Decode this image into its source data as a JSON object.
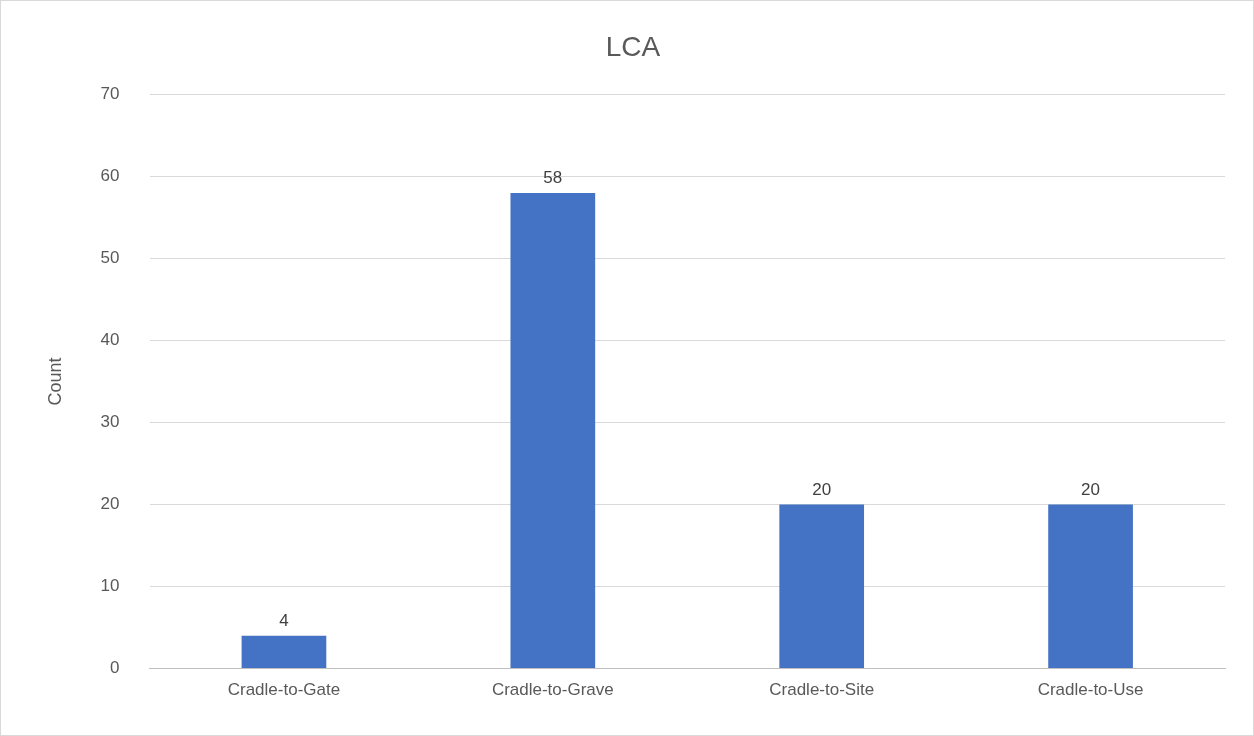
{
  "chart_data": {
    "type": "bar",
    "title": "LCA",
    "ylabel": "Count",
    "categories": [
      "Cradle-to-Gate",
      "Cradle-to-Grave",
      "Cradle-to-Site",
      "Cradle-to-Use"
    ],
    "values": [
      4,
      58,
      20,
      20
    ],
    "color": "#4472c4",
    "ylim": [
      0,
      70
    ],
    "yticks": [
      0,
      10,
      20,
      30,
      40,
      50,
      60,
      70
    ],
    "grid": "y",
    "data_labels": true
  }
}
